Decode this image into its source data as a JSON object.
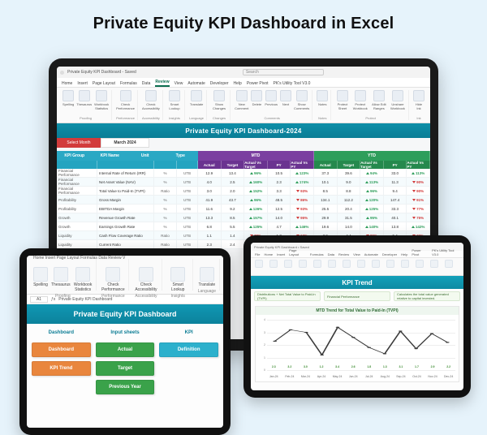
{
  "page": {
    "title": "Private Equity KPI Dashboard in Excel"
  },
  "laptop": {
    "titlebar": {
      "filename": "Private Equity KPI Dashboard - Saved",
      "search_placeholder": "Search"
    },
    "tabs": [
      "Home",
      "Insert",
      "Page Layout",
      "Formulas",
      "Data",
      "Review",
      "View",
      "Automate",
      "Developer",
      "Help",
      "Power Pivot",
      "PK's Utility Tool V3.0"
    ],
    "active_tab": "Review",
    "ribbon_groups": [
      {
        "label": "Proofing",
        "buttons": [
          "Spelling",
          "Thesaurus",
          "Workbook Statistics"
        ]
      },
      {
        "label": "Performance",
        "buttons": [
          "Check Performance"
        ]
      },
      {
        "label": "Accessibility",
        "buttons": [
          "Check Accessibility"
        ]
      },
      {
        "label": "Insights",
        "buttons": [
          "Smart Lookup"
        ]
      },
      {
        "label": "Language",
        "buttons": [
          "Translate"
        ]
      },
      {
        "label": "Changes",
        "buttons": [
          "Show Changes"
        ]
      },
      {
        "label": "Comments",
        "buttons": [
          "New Comment",
          "Delete",
          "Previous",
          "Next",
          "Show Comments"
        ]
      },
      {
        "label": "Notes",
        "buttons": [
          "Notes"
        ]
      },
      {
        "label": "Protect",
        "buttons": [
          "Protect Sheet",
          "Protect Workbook",
          "Allow Edit Ranges",
          "Unshare Workbook"
        ]
      },
      {
        "label": "Ink",
        "buttons": [
          "Hide Ink"
        ]
      }
    ],
    "dashboard": {
      "title": "Private Equity KPI Dashboard-2024",
      "select_month_label": "Select Month",
      "month": "March 2024",
      "section_labels": {
        "mtd": "MTD",
        "ytd": "YTD"
      },
      "head_left": {
        "group": "KPI Group",
        "name": "KPI Name",
        "unit": "Unit",
        "type": "Type"
      },
      "metric_cols": [
        "Actual",
        "Target",
        "Actual Vs Target",
        "PY",
        "Actual Vs PY"
      ],
      "rows": [
        {
          "group": "Financial Performance",
          "name": "Internal Rate of Return (IRR)",
          "unit": "%",
          "type": "UTB",
          "mtd": {
            "actual": "12.9",
            "target": "13.4",
            "avt": "96%",
            "avt_up": true,
            "py": "10.5",
            "avp": "123%",
            "avp_up": true
          },
          "ytd": {
            "actual": "37.3",
            "target": "39.6",
            "avt": "94%",
            "avt_up": true,
            "py": "33.0",
            "avp": "113%",
            "avp_up": true
          }
        },
        {
          "group": "Financial Performance",
          "name": "Net Asset Value (NAV)",
          "unit": "%",
          "type": "UTB",
          "mtd": {
            "actual": "4.0",
            "target": "2.5",
            "avt": "160%",
            "avt_up": true,
            "py": "2.3",
            "avp": "174%",
            "avp_up": true
          },
          "ytd": {
            "actual": "10.1",
            "target": "9.0",
            "avt": "113%",
            "avt_up": true,
            "py": "11.3",
            "avp": "90%",
            "avp_up": false
          }
        },
        {
          "group": "Financial Performance",
          "name": "Total Value to Paid-In (TVPI)",
          "unit": "Ratio",
          "type": "UTB",
          "mtd": {
            "actual": "3.0",
            "target": "2.0",
            "avt": "152%",
            "avt_up": true,
            "py": "3.3",
            "avp": "93%",
            "avp_up": false
          },
          "ytd": {
            "actual": "8.5",
            "target": "8.8",
            "avt": "96%",
            "avt_up": true,
            "py": "9.4",
            "avp": "90%",
            "avp_up": false
          }
        },
        {
          "group": "Profitability",
          "name": "Gross Margin",
          "unit": "%",
          "type": "UTB",
          "mtd": {
            "actual": "41.9",
            "target": "43.7",
            "avt": "96%",
            "avt_up": true,
            "py": "48.5",
            "avp": "86%",
            "avp_up": false
          },
          "ytd": {
            "actual": "134.1",
            "target": "112.2",
            "avt": "120%",
            "avt_up": true,
            "py": "147.4",
            "avp": "91%",
            "avp_up": false
          }
        },
        {
          "group": "Profitability",
          "name": "EBITDA Margin",
          "unit": "%",
          "type": "UTB",
          "mtd": {
            "actual": "11.6",
            "target": "9.2",
            "avt": "126%",
            "avt_up": true,
            "py": "12.5",
            "avp": "93%",
            "avp_up": false
          },
          "ytd": {
            "actual": "25.5",
            "target": "20.4",
            "avt": "125%",
            "avt_up": true,
            "py": "33.3",
            "avp": "77%",
            "avp_up": false
          }
        },
        {
          "group": "Growth",
          "name": "Revenue Growth Rate",
          "unit": "%",
          "type": "UTB",
          "mtd": {
            "actual": "13.3",
            "target": "8.5",
            "avt": "157%",
            "avt_up": true,
            "py": "14.0",
            "avp": "95%",
            "avp_up": false
          },
          "ytd": {
            "actual": "29.9",
            "target": "31.5",
            "avt": "95%",
            "avt_up": true,
            "py": "40.1",
            "avp": "75%",
            "avp_up": false
          }
        },
        {
          "group": "Growth",
          "name": "Earnings Growth Rate",
          "unit": "%",
          "type": "UTB",
          "mtd": {
            "actual": "6.8",
            "target": "5.5",
            "avt": "125%",
            "avt_up": true,
            "py": "4.7",
            "avp": "146%",
            "avp_up": true
          },
          "ytd": {
            "actual": "19.6",
            "target": "14.0",
            "avt": "140%",
            "avt_up": true,
            "py": "13.8",
            "avp": "142%",
            "avp_up": true
          }
        },
        {
          "group": "Liquidity",
          "name": "Cash Flow Coverage Ratio",
          "unit": "Ratio",
          "type": "UTB",
          "mtd": {
            "actual": "1.1",
            "target": "1.4",
            "avt": "78%",
            "avt_up": false,
            "py": "1.7",
            "avp": "63%",
            "avp_up": false
          },
          "ytd": {
            "actual": "3.9",
            "target": "4.4",
            "avt": "89%",
            "avt_up": false,
            "py": "5.4",
            "avp": "73%",
            "avp_up": false
          }
        },
        {
          "group": "Liquidity",
          "name": "Current Ratio",
          "unit": "Ratio",
          "type": "UTB",
          "mtd": {
            "actual": "2.3",
            "target": "2.4",
            "avt": "96%",
            "avt_up": true,
            "py": "1.7",
            "avp": "137%",
            "avp_up": true
          },
          "ytd": {
            "actual": "6.0",
            "target": "5.4",
            "avt": "111%",
            "avt_up": true,
            "py": "4.1",
            "avp": "146%",
            "avp_up": true
          }
        }
      ],
      "colors": {
        "header": "#0e8fa8",
        "mtd": "#7b3fa0",
        "ytd": "#2e9e5b",
        "left": "#2aa8c4",
        "month_chip": "#d23b3b"
      }
    }
  },
  "tablet_left": {
    "tabs_strip": "Home    Insert    Page Layout    Formulas    Data    Review    V",
    "groups": [
      {
        "label": "Proofing",
        "buttons": [
          "Spelling",
          "Thesaurus",
          "Workbook Statistics"
        ]
      },
      {
        "label": "Performance",
        "buttons": [
          "Check Performance"
        ]
      },
      {
        "label": "Accessibility",
        "buttons": [
          "Check Accessibility"
        ]
      },
      {
        "label": "Insights",
        "buttons": [
          "Smart Lookup"
        ]
      },
      {
        "label": "Language",
        "buttons": [
          "Translate"
        ]
      }
    ],
    "cell_ref": "A1",
    "fx_text": "Private Equity KPI Dashboard",
    "header": "Private Equity KPI Dashboard",
    "sections": {
      "dashboard": {
        "title": "Dashboard",
        "chips": [
          {
            "label": "Dashboard",
            "color": "#e9863d"
          },
          {
            "label": "KPI Trend",
            "color": "#e9863d"
          }
        ]
      },
      "input": {
        "title": "Input sheets",
        "chips": [
          {
            "label": "Actual",
            "color": "#3aa24a"
          },
          {
            "label": "Target",
            "color": "#3aa24a"
          },
          {
            "label": "Previous Year",
            "color": "#3aa24a"
          }
        ]
      },
      "kpi": {
        "title": "KPI",
        "chips": [
          {
            "label": "Definition",
            "color": "#2cb0cc"
          }
        ]
      }
    }
  },
  "tablet_right": {
    "titlebar": "Private Equity KPI Dashboard  •  Saved",
    "tabs": [
      "File",
      "Home",
      "Insert",
      "Page Layout",
      "Formulas",
      "Data",
      "Review",
      "View",
      "Automate",
      "Developer",
      "Help",
      "Power Pivot",
      "PK's Utility Tool V3.0"
    ],
    "ribbon_buttons": [
      "abc",
      "Aa",
      "Aa",
      "Aa",
      "Aa",
      "Aa",
      "Aa",
      "Aa",
      "Aa",
      "Aa",
      "Aa",
      "Aa",
      "Aa",
      "Aa"
    ],
    "header": "KPI Trend",
    "controls": [
      {
        "label": "Distributions + Net Total Value to Paid-In (TVPI)"
      },
      {
        "label": "Financial Performance"
      },
      {
        "label": "Calculates the total value generated relative to capital invested."
      }
    ],
    "chart": {
      "title": "MTD Trend for Total Value to Paid-In (TVPI)",
      "y_ticks": [
        0,
        1,
        2,
        3,
        4
      ],
      "ylim": [
        0,
        4
      ],
      "series": [
        {
          "label": "Jan-24",
          "value": 2.3
        },
        {
          "label": "Feb-24",
          "value": 3.2
        },
        {
          "label": "Mar-24",
          "value": 3.0
        },
        {
          "label": "Apr-24",
          "value": 1.2
        },
        {
          "label": "May-24",
          "value": 3.4
        },
        {
          "label": "Jun-24",
          "value": 2.6
        },
        {
          "label": "Jul-24",
          "value": 1.8
        },
        {
          "label": "Aug-24",
          "value": 1.3
        },
        {
          "label": "Sep-24",
          "value": 3.1
        },
        {
          "label": "Oct-24",
          "value": 1.7
        },
        {
          "label": "Nov-24",
          "value": 2.9
        },
        {
          "label": "Dec-24",
          "value": 2.2
        }
      ],
      "bar_color": "#57b233",
      "line_color": "#3a3a3a",
      "grid_color": "#eeeeee",
      "background": "#ffffff"
    }
  }
}
